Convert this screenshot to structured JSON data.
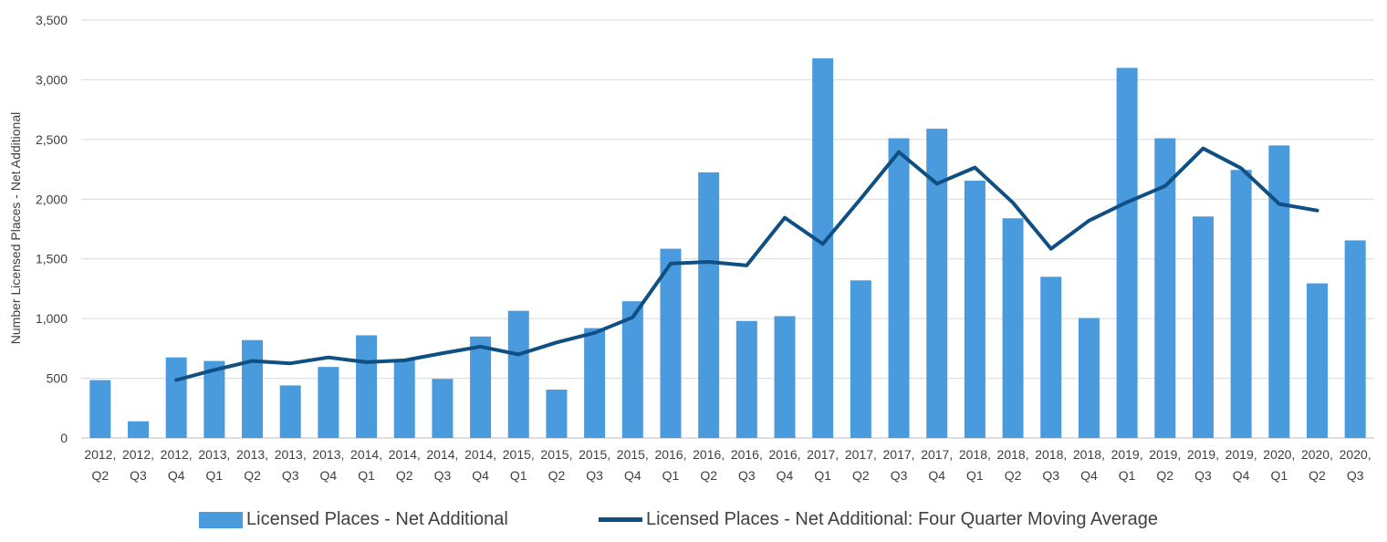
{
  "chart_data": {
    "type": "bar",
    "ylabel": "Number Licensed Places - Net Additional",
    "ylim": [
      0,
      3500
    ],
    "yticks": [
      0,
      500,
      1000,
      1500,
      2000,
      2500,
      3000,
      3500
    ],
    "ytick_labels": [
      "0",
      "500",
      "1,000",
      "1,500",
      "2,000",
      "2,500",
      "3,000",
      "3,500"
    ],
    "grid": true,
    "legend_position": "bottom",
    "categories": [
      [
        "2012,",
        "Q2"
      ],
      [
        "2012,",
        "Q3"
      ],
      [
        "2012,",
        "Q4"
      ],
      [
        "2013,",
        "Q1"
      ],
      [
        "2013,",
        "Q2"
      ],
      [
        "2013,",
        "Q3"
      ],
      [
        "2013,",
        "Q4"
      ],
      [
        "2014,",
        "Q1"
      ],
      [
        "2014,",
        "Q2"
      ],
      [
        "2014,",
        "Q3"
      ],
      [
        "2014,",
        "Q4"
      ],
      [
        "2015,",
        "Q1"
      ],
      [
        "2015,",
        "Q2"
      ],
      [
        "2015,",
        "Q3"
      ],
      [
        "2015,",
        "Q4"
      ],
      [
        "2016,",
        "Q1"
      ],
      [
        "2016,",
        "Q2"
      ],
      [
        "2016,",
        "Q3"
      ],
      [
        "2016,",
        "Q4"
      ],
      [
        "2017,",
        "Q1"
      ],
      [
        "2017,",
        "Q2"
      ],
      [
        "2017,",
        "Q3"
      ],
      [
        "2017,",
        "Q4"
      ],
      [
        "2018,",
        "Q1"
      ],
      [
        "2018,",
        "Q2"
      ],
      [
        "2018,",
        "Q3"
      ],
      [
        "2018,",
        "Q4"
      ],
      [
        "2019,",
        "Q1"
      ],
      [
        "2019,",
        "Q2"
      ],
      [
        "2019,",
        "Q3"
      ],
      [
        "2019,",
        "Q4"
      ],
      [
        "2020,",
        "Q1"
      ],
      [
        "2020,",
        "Q2"
      ],
      [
        "2020,",
        "Q3"
      ]
    ],
    "series": [
      {
        "name": "Licensed Places - Net Additional",
        "type": "bar",
        "color": "#4a9ade",
        "values": [
          485,
          140,
          675,
          645,
          820,
          440,
          595,
          860,
          660,
          495,
          850,
          1065,
          405,
          920,
          1145,
          1585,
          2225,
          980,
          1020,
          3180,
          1320,
          2510,
          2590,
          2155,
          1840,
          1350,
          1005,
          3100,
          2510,
          1855,
          2245,
          2450,
          1295,
          1655
        ]
      },
      {
        "name": "Licensed Places - Net Additional: Four Quarter Moving Average",
        "type": "line",
        "color": "#0f4f82",
        "values": [
          null,
          null,
          485,
          570,
          645,
          625,
          675,
          635,
          650,
          710,
          765,
          700,
          800,
          880,
          1010,
          1460,
          1475,
          1445,
          1845,
          1625,
          2005,
          2395,
          2130,
          2265,
          1970,
          1585,
          1820,
          1975,
          2110,
          2425,
          2260,
          1960,
          1905,
          null
        ]
      }
    ]
  }
}
